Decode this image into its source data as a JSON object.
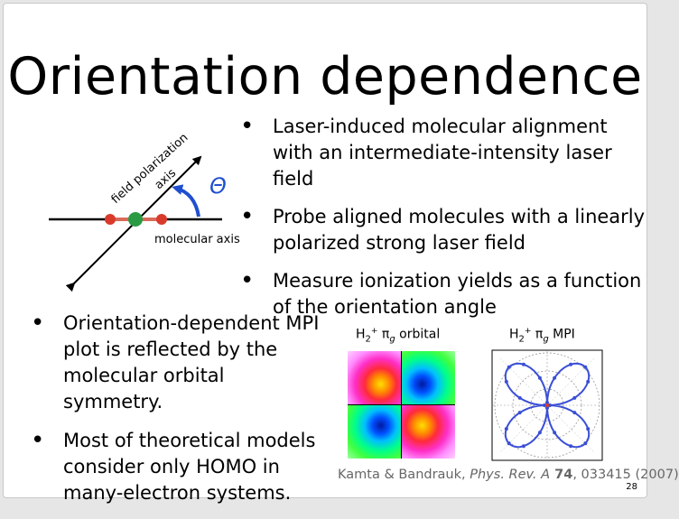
{
  "slide": {
    "title": "Orientation dependence",
    "bullets_right": [
      "Laser-induced molecular alignment with an intermediate-intensity laser field",
      "Probe aligned molecules with a linearly polarized strong laser field",
      "Measure ionization yields as a function of the orientation angle"
    ],
    "bullets_left": [
      "Orientation-dependent MPI plot is reflected by the molecular orbital symmetry.",
      "Most of theoretical models consider only HOMO in many-electron systems."
    ],
    "bullet_symbol": "•",
    "diagram": {
      "field_label_line1": "field polarization",
      "field_label_line2": "axis",
      "angle_symbol": "Θ",
      "molecular_axis_label": "molecular axis"
    },
    "figure_orbital": {
      "prefix": "H",
      "sub_2": "2",
      "sup_plus": "+",
      "pi": " π",
      "sub_g": "g",
      "suffix": " orbital"
    },
    "figure_mpi": {
      "prefix": "H",
      "sub_2": "2",
      "sup_plus": "+",
      "pi": " π",
      "sub_g": "g",
      "suffix": " MPI"
    },
    "citation": {
      "authors": "Kamta & Bandrauk, ",
      "journal": "Phys. Rev. A",
      "volume": " 74",
      "rest": ", 033415 (2007)"
    },
    "page_number": "28",
    "colors": {
      "arrow_blue": "#1f4fd0",
      "atom_red": "#d93a2b",
      "atom_green": "#2a9a44",
      "bond": "#d96a5a",
      "polar_curve": "#3a4fd6"
    }
  }
}
